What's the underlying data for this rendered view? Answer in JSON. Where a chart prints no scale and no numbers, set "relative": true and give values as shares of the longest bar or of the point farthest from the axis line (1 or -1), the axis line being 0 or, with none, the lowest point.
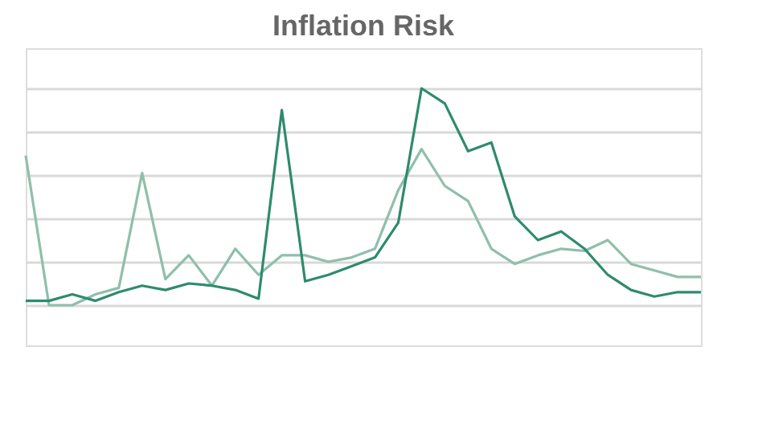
{
  "chart_data": {
    "type": "line",
    "title": "Inflation Risk",
    "relative": true,
    "grid": "y",
    "tick_labels": false,
    "line_style": "solid",
    "categories": [
      null,
      null,
      null,
      null,
      null,
      null,
      null,
      null,
      null,
      null,
      null,
      null,
      null,
      null,
      null,
      null,
      null,
      null,
      null,
      null,
      null,
      null,
      null,
      null,
      null,
      null,
      null,
      null,
      null,
      null
    ],
    "series": [
      {
        "color": "#8fbfaa",
        "values": [
          0.69,
          0,
          0,
          0.05,
          0.08,
          0.61,
          0.12,
          0.23,
          0.09,
          0.26,
          0.14,
          0.23,
          0.23,
          0.2,
          0.22,
          0.26,
          0.53,
          0.72,
          0.55,
          0.48,
          0.26,
          0.19,
          0.23,
          0.26,
          0.25,
          0.3,
          0.19,
          0.16,
          0.13,
          0.13
        ]
      },
      {
        "color": "#2e8b6e",
        "values": [
          0.02,
          0.02,
          0.05,
          0.02,
          0.06,
          0.09,
          0.07,
          0.1,
          0.09,
          0.07,
          0.03,
          0.9,
          0.11,
          0.14,
          0.18,
          0.22,
          0.38,
          1,
          0.93,
          0.71,
          0.75,
          0.41,
          0.3,
          0.34,
          0.26,
          0.14,
          0.07,
          0.04,
          0.06,
          0.06
        ]
      }
    ]
  }
}
